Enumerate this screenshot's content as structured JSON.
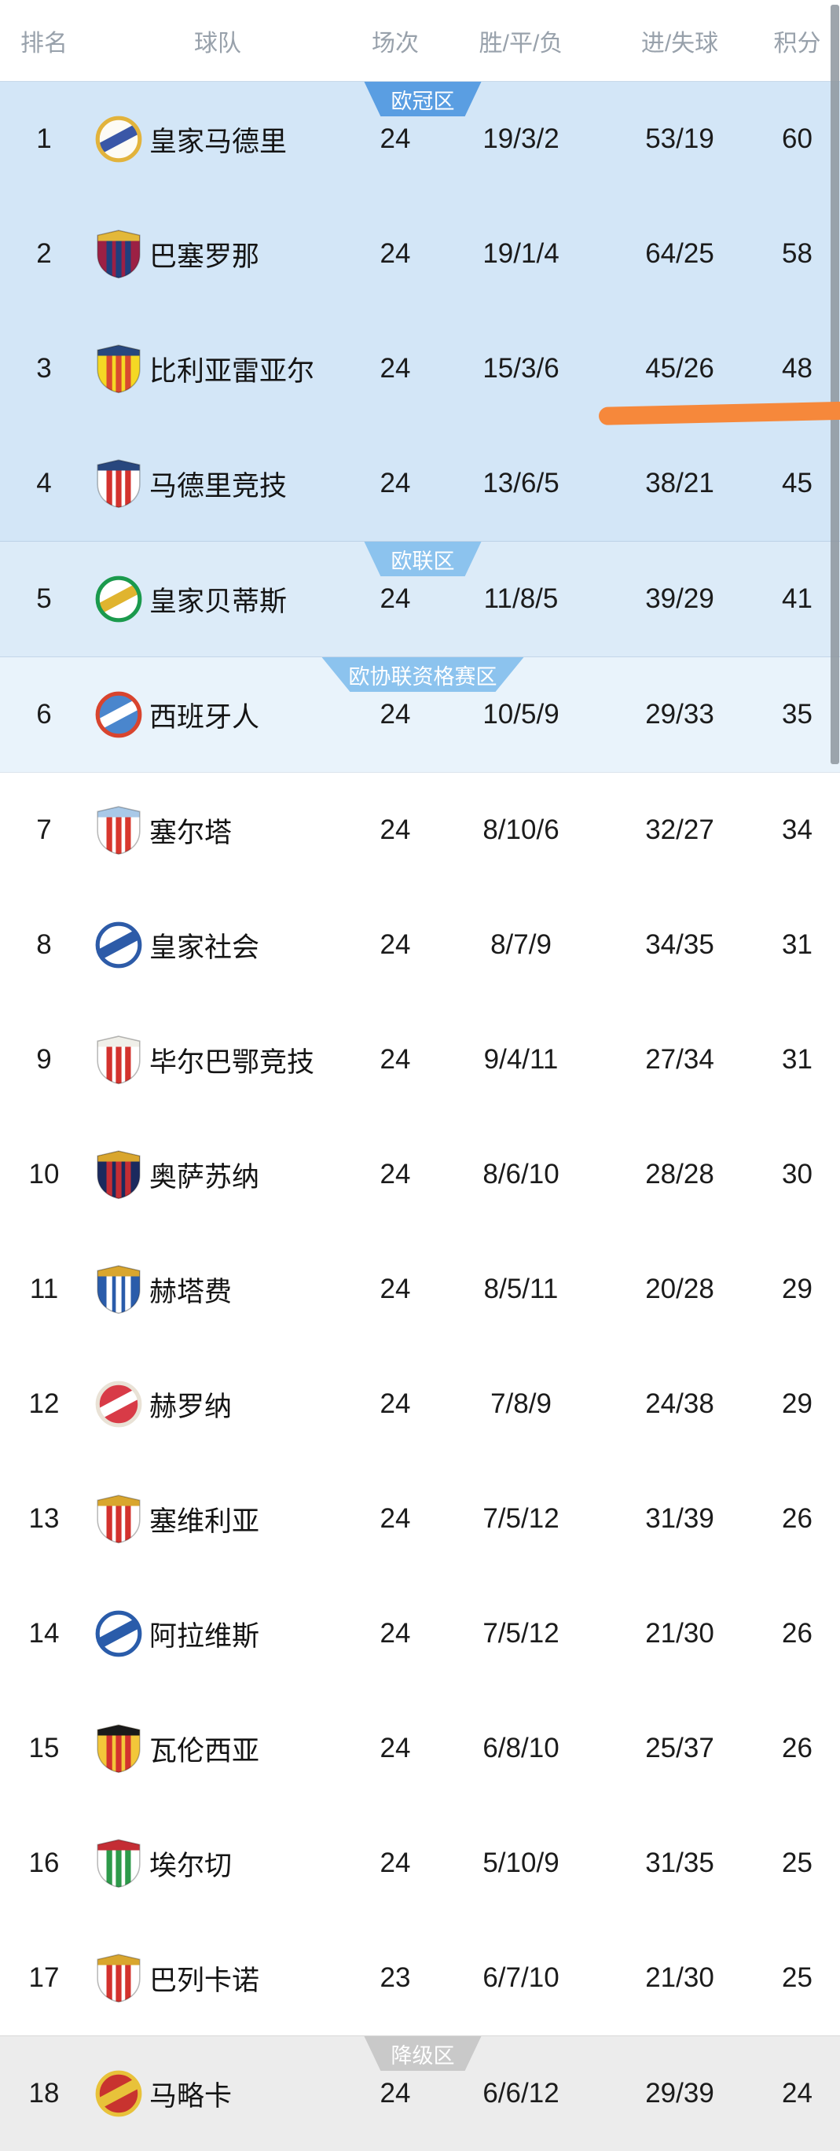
{
  "header": {
    "columns": [
      "排名",
      "球队",
      "场次",
      "胜/平/负",
      "进/失球",
      "积分"
    ]
  },
  "zones": {
    "champions": {
      "label": "欧冠区",
      "badge_color": "#5a9ee2",
      "bg": "#d3e6f7"
    },
    "europa": {
      "label": "欧联区",
      "badge_color": "#8cc3ee",
      "bg": "#dcebf8"
    },
    "conference": {
      "label": "欧协联资格赛区",
      "badge_color": "#8cc3ee",
      "bg": "#e9f3fb"
    },
    "relegation": {
      "label": "降级区",
      "badge_color": "#c9c9c9",
      "bg": "#ececec"
    }
  },
  "teams": [
    {
      "rank": "1",
      "name": "皇家马德里",
      "played": "24",
      "wdl": "19/3/2",
      "goals": "53/19",
      "points": "60",
      "zone": "champions",
      "icon": "real-madrid-crest",
      "crest": {
        "shape": "circle",
        "primary": "#fdfbf5",
        "secondary": "#e2b33c",
        "accent": "#3a57a7"
      }
    },
    {
      "rank": "2",
      "name": "巴塞罗那",
      "played": "24",
      "wdl": "19/1/4",
      "goals": "64/25",
      "points": "58",
      "zone": "champions",
      "icon": "barcelona-crest",
      "crest": {
        "shape": "shield",
        "primary": "#9c2044",
        "secondary": "#1f3f7d",
        "accent": "#e3b83a"
      }
    },
    {
      "rank": "3",
      "name": "比利亚雷亚尔",
      "played": "24",
      "wdl": "15/3/6",
      "goals": "45/26",
      "points": "48",
      "zone": "champions",
      "icon": "villarreal-crest",
      "crest": {
        "shape": "shield",
        "primary": "#f5d824",
        "secondary": "#d94a2f",
        "accent": "#28477e"
      }
    },
    {
      "rank": "4",
      "name": "马德里竞技",
      "played": "24",
      "wdl": "13/6/5",
      "goals": "38/21",
      "points": "45",
      "zone": "champions",
      "icon": "atletico-madrid-crest",
      "crest": {
        "shape": "shield",
        "primary": "#ffffff",
        "secondary": "#d3322e",
        "accent": "#28477e"
      }
    },
    {
      "rank": "5",
      "name": "皇家贝蒂斯",
      "played": "24",
      "wdl": "11/8/5",
      "goals": "39/29",
      "points": "41",
      "zone": "europa",
      "icon": "real-betis-crest",
      "crest": {
        "shape": "circle",
        "primary": "#ffffff",
        "secondary": "#1b9a4d",
        "accent": "#e0b42f"
      }
    },
    {
      "rank": "6",
      "name": "西班牙人",
      "played": "24",
      "wdl": "10/5/9",
      "goals": "29/33",
      "points": "35",
      "zone": "conference",
      "icon": "espanyol-crest",
      "crest": {
        "shape": "circle",
        "primary": "#4a86cd",
        "secondary": "#d8442e",
        "accent": "#ffffff"
      }
    },
    {
      "rank": "7",
      "name": "塞尔塔",
      "played": "24",
      "wdl": "8/10/6",
      "goals": "32/27",
      "points": "34",
      "zone": "none",
      "icon": "celta-vigo-crest",
      "crest": {
        "shape": "shield",
        "primary": "#ffffff",
        "secondary": "#d8372e",
        "accent": "#a9c9e8"
      }
    },
    {
      "rank": "8",
      "name": "皇家社会",
      "played": "24",
      "wdl": "8/7/9",
      "goals": "34/35",
      "points": "31",
      "zone": "none",
      "icon": "real-sociedad-crest",
      "crest": {
        "shape": "circle",
        "primary": "#ffffff",
        "secondary": "#2d5ba8",
        "accent": "#2d5ba8"
      }
    },
    {
      "rank": "9",
      "name": "毕尔巴鄂竞技",
      "played": "24",
      "wdl": "9/4/11",
      "goals": "27/34",
      "points": "31",
      "zone": "none",
      "icon": "athletic-bilbao-crest",
      "crest": {
        "shape": "shield",
        "primary": "#ffffff",
        "secondary": "#d3322e",
        "accent": "#f0efe9"
      }
    },
    {
      "rank": "10",
      "name": "奥萨苏纳",
      "played": "24",
      "wdl": "8/6/10",
      "goals": "28/28",
      "points": "30",
      "zone": "none",
      "icon": "osasuna-crest",
      "crest": {
        "shape": "shield",
        "primary": "#1b2a5e",
        "secondary": "#c42d34",
        "accent": "#d9a62e"
      }
    },
    {
      "rank": "11",
      "name": "赫塔费",
      "played": "24",
      "wdl": "8/5/11",
      "goals": "20/28",
      "points": "29",
      "zone": "none",
      "icon": "getafe-crest",
      "crest": {
        "shape": "shield",
        "primary": "#2a5caa",
        "secondary": "#ffffff",
        "accent": "#d9a62e"
      }
    },
    {
      "rank": "12",
      "name": "赫罗纳",
      "played": "24",
      "wdl": "7/8/9",
      "goals": "24/38",
      "points": "29",
      "zone": "none",
      "icon": "girona-crest",
      "crest": {
        "shape": "circle",
        "primary": "#d83b47",
        "secondary": "#e9e2d6",
        "accent": "#ffffff"
      }
    },
    {
      "rank": "13",
      "name": "塞维利亚",
      "played": "24",
      "wdl": "7/5/12",
      "goals": "31/39",
      "points": "26",
      "zone": "none",
      "icon": "sevilla-crest",
      "crest": {
        "shape": "shield",
        "primary": "#ffffff",
        "secondary": "#d3322e",
        "accent": "#d9a62e"
      }
    },
    {
      "rank": "14",
      "name": "阿拉维斯",
      "played": "24",
      "wdl": "7/5/12",
      "goals": "21/30",
      "points": "26",
      "zone": "none",
      "icon": "alaves-crest",
      "crest": {
        "shape": "circle",
        "primary": "#ffffff",
        "secondary": "#2a5caa",
        "accent": "#2a5caa"
      }
    },
    {
      "rank": "15",
      "name": "瓦伦西亚",
      "played": "24",
      "wdl": "6/8/10",
      "goals": "25/37",
      "points": "26",
      "zone": "none",
      "icon": "valencia-crest",
      "crest": {
        "shape": "shield",
        "primary": "#f3c73a",
        "secondary": "#d3322e",
        "accent": "#1a1a1a"
      }
    },
    {
      "rank": "16",
      "name": "埃尔切",
      "played": "24",
      "wdl": "5/10/9",
      "goals": "31/35",
      "points": "25",
      "zone": "none",
      "icon": "elche-crest",
      "crest": {
        "shape": "shield",
        "primary": "#ffffff",
        "secondary": "#2e9a4a",
        "accent": "#c42d34"
      }
    },
    {
      "rank": "17",
      "name": "巴列卡诺",
      "played": "23",
      "wdl": "6/7/10",
      "goals": "21/30",
      "points": "25",
      "zone": "none",
      "icon": "rayo-vallecano-crest",
      "crest": {
        "shape": "shield",
        "primary": "#ffffff",
        "secondary": "#d3322e",
        "accent": "#d9a62e"
      }
    },
    {
      "rank": "18",
      "name": "马略卡",
      "played": "24",
      "wdl": "6/6/12",
      "goals": "29/39",
      "points": "24",
      "zone": "relegation",
      "icon": "mallorca-crest",
      "crest": {
        "shape": "circle",
        "primary": "#c8332f",
        "secondary": "#e8c23a",
        "accent": "#e8c23a"
      }
    }
  ],
  "annotation": {
    "type": "hand-drawn-highlight",
    "color": "#f6883b"
  },
  "scrollbar": {
    "color": "#8d959e"
  }
}
